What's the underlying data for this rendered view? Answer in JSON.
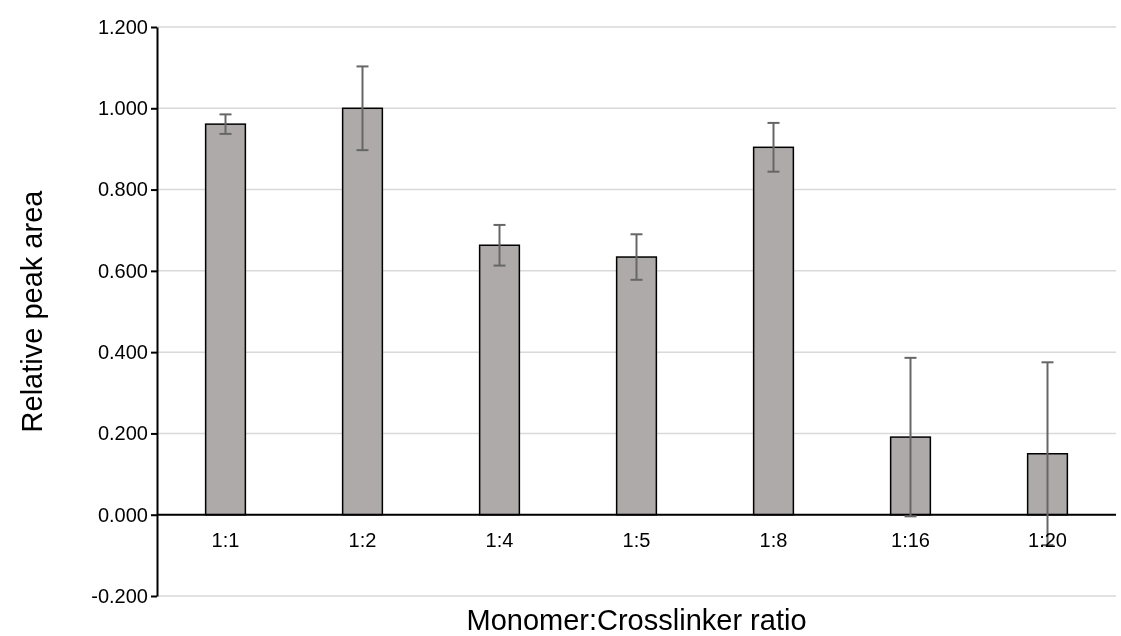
{
  "chart_data": {
    "type": "bar",
    "xlabel": "Monomer:Crosslinker ratio",
    "ylabel": "Relative peak area",
    "categories": [
      "1:1",
      "1:2",
      "1:4",
      "1:5",
      "1:8",
      "1:16",
      "1:20"
    ],
    "values": [
      0.961,
      1.0,
      0.663,
      0.634,
      0.904,
      0.191,
      0.15
    ],
    "errors": [
      0.024,
      0.103,
      0.05,
      0.056,
      0.06,
      0.195,
      0.225
    ],
    "color": "#aeaaaa",
    "ylim": [
      -0.2,
      1.2
    ],
    "yticks": [
      {
        "value": -0.2,
        "label": "-0.200"
      },
      {
        "value": 0,
        "label": "0.000"
      },
      {
        "value": 0.2,
        "label": "0.200"
      },
      {
        "value": 0.4,
        "label": "0.400"
      },
      {
        "value": 0.6,
        "label": "0.600"
      },
      {
        "value": 0.8,
        "label": "0.800"
      },
      {
        "value": 1,
        "label": "1.000"
      },
      {
        "value": 1.2,
        "label": "1.200"
      }
    ],
    "grid": "y"
  }
}
